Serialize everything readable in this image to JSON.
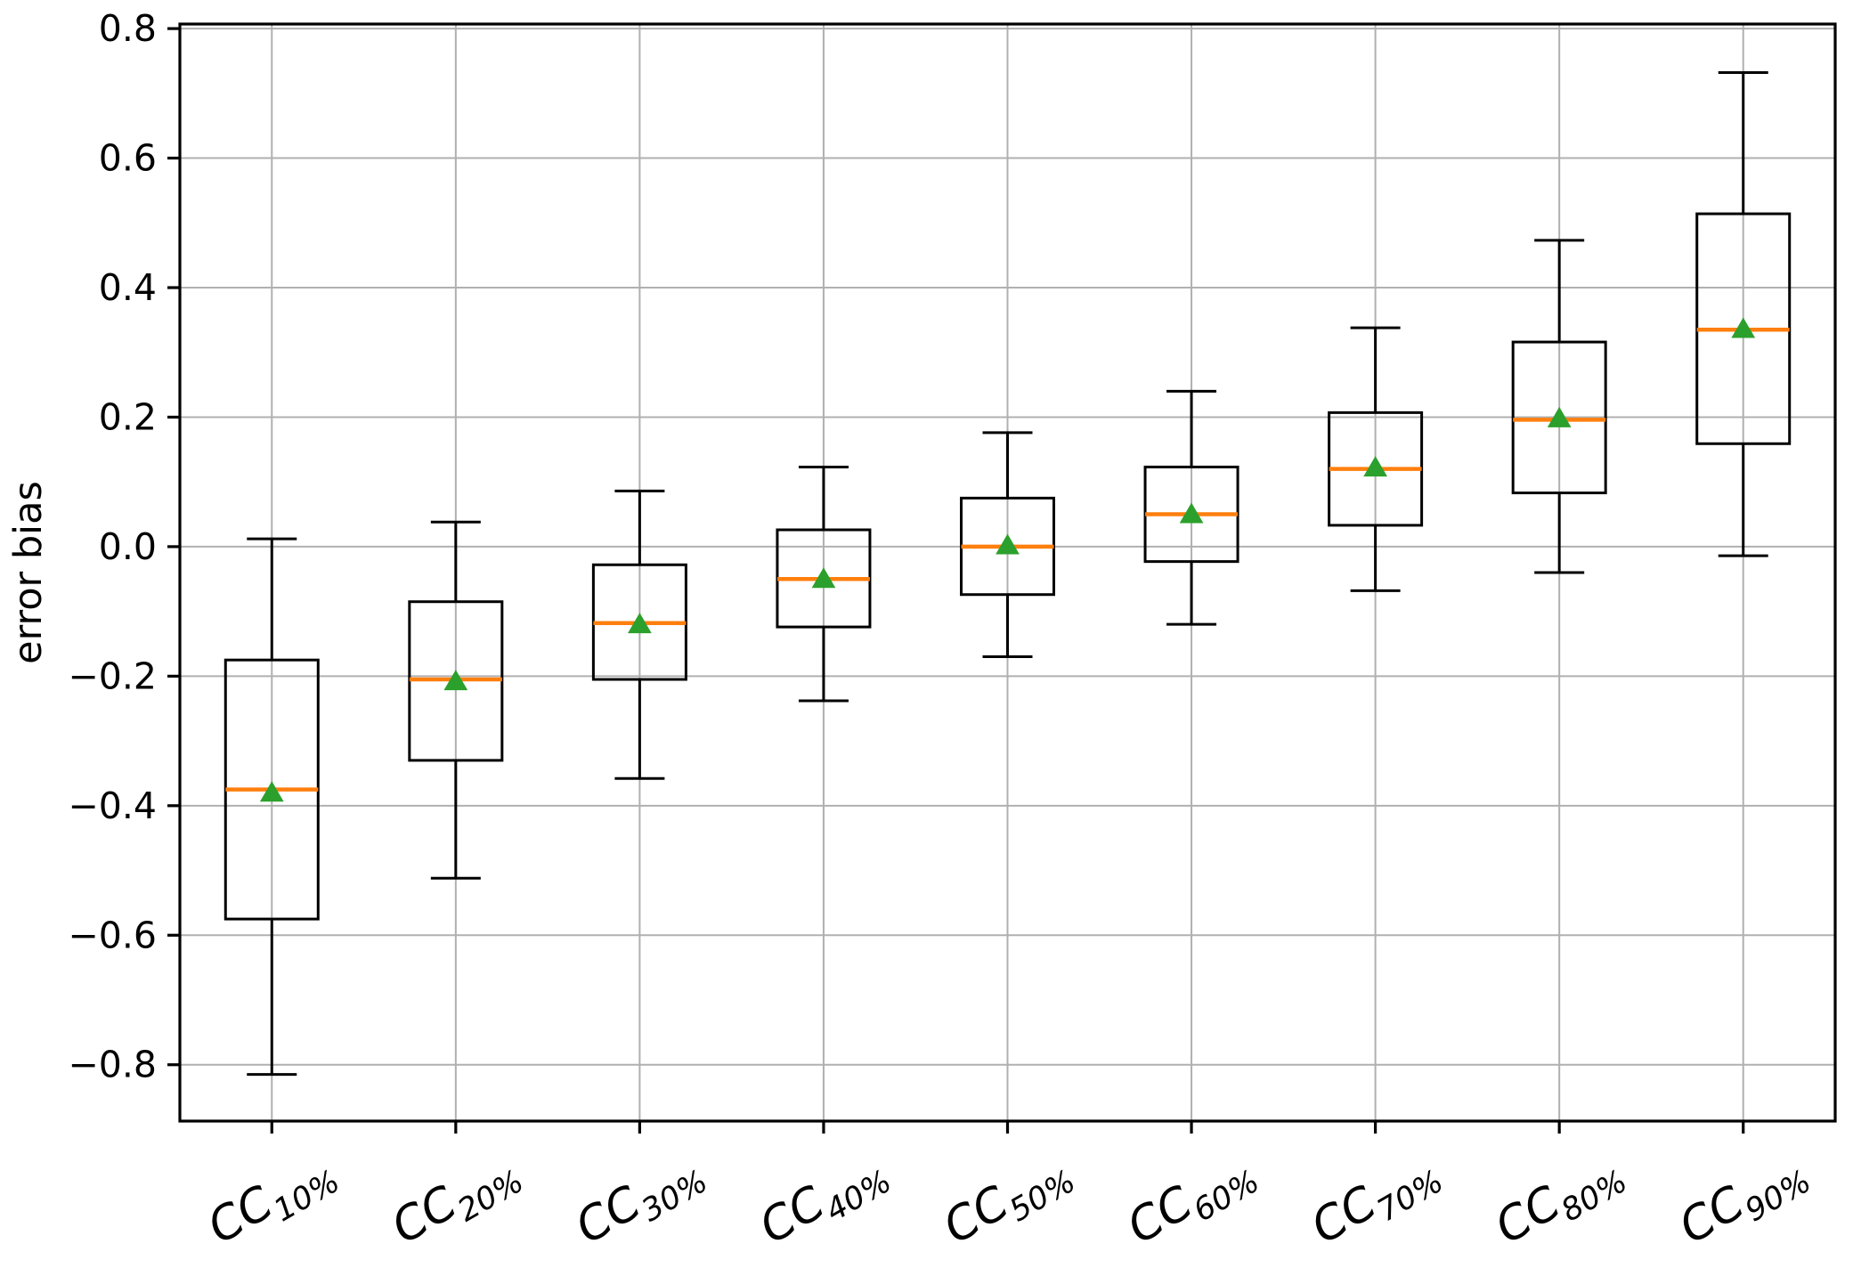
{
  "chart_data": {
    "type": "boxplot",
    "title": "",
    "xlabel": "",
    "ylabel": "error bias",
    "grid": true,
    "legend": "none",
    "ylim": [
      -0.887,
      0.807
    ],
    "yticks": {
      "values": [
        0.8,
        0.6,
        0.4,
        0.2,
        0.0,
        -0.2,
        -0.4,
        -0.6,
        -0.8
      ],
      "labels": [
        "0.8",
        "0.6",
        "0.4",
        "0.2",
        "0.0",
        "−0.2",
        "−0.4",
        "−0.6",
        "−0.8"
      ]
    },
    "categories": [
      {
        "base": "CC",
        "sub": "10%"
      },
      {
        "base": "CC",
        "sub": "20%"
      },
      {
        "base": "CC",
        "sub": "30%"
      },
      {
        "base": "CC",
        "sub": "40%"
      },
      {
        "base": "CC",
        "sub": "50%"
      },
      {
        "base": "CC",
        "sub": "60%"
      },
      {
        "base": "CC",
        "sub": "70%"
      },
      {
        "base": "CC",
        "sub": "80%"
      },
      {
        "base": "CC",
        "sub": "90%"
      }
    ],
    "boxes": [
      {
        "label": "CC 10%",
        "whislo": -0.815,
        "q1": -0.575,
        "med": -0.375,
        "q3": -0.175,
        "whishi": 0.012,
        "mean": -0.38
      },
      {
        "label": "CC 20%",
        "whislo": -0.512,
        "q1": -0.33,
        "med": -0.205,
        "q3": -0.085,
        "whishi": 0.038,
        "mean": -0.208
      },
      {
        "label": "CC 30%",
        "whislo": -0.358,
        "q1": -0.205,
        "med": -0.118,
        "q3": -0.028,
        "whishi": 0.086,
        "mean": -0.12
      },
      {
        "label": "CC 40%",
        "whislo": -0.238,
        "q1": -0.124,
        "med": -0.05,
        "q3": 0.026,
        "whishi": 0.123,
        "mean": -0.05
      },
      {
        "label": "CC 50%",
        "whislo": -0.17,
        "q1": -0.074,
        "med": 0.0,
        "q3": 0.075,
        "whishi": 0.176,
        "mean": 0.002
      },
      {
        "label": "CC 60%",
        "whislo": -0.12,
        "q1": -0.023,
        "med": 0.05,
        "q3": 0.123,
        "whishi": 0.24,
        "mean": 0.05
      },
      {
        "label": "CC 70%",
        "whislo": -0.068,
        "q1": 0.033,
        "med": 0.12,
        "q3": 0.207,
        "whishi": 0.338,
        "mean": 0.122
      },
      {
        "label": "CC 80%",
        "whislo": -0.04,
        "q1": 0.083,
        "med": 0.196,
        "q3": 0.316,
        "whishi": 0.473,
        "mean": 0.198
      },
      {
        "label": "CC 90%",
        "whislo": -0.014,
        "q1": 0.159,
        "med": 0.335,
        "q3": 0.514,
        "whishi": 0.732,
        "mean": 0.336
      }
    ],
    "colors": {
      "box_edge": "#000000",
      "median": "#ff7f0e",
      "mean_marker": "#2ca02c",
      "grid": "#b0b0b0",
      "spine": "#000000",
      "tick_label": "#000000",
      "background": "#ffffff"
    },
    "marker": {
      "mean": "triangle-up-icon"
    }
  }
}
